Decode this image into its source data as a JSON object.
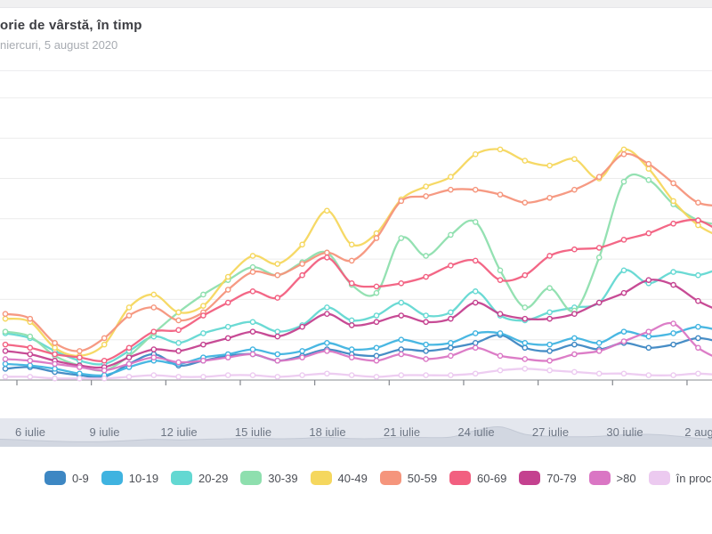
{
  "header": {
    "title": "orie de vârstă, în timp",
    "subtitle": "niercuri, 5 august 2020"
  },
  "chart_data": {
    "type": "line",
    "style": "smooth splines with small open circle markers, one point per day",
    "title": "orie de vârstă, în timp",
    "subtitle": "niercuri, 5 august 2020",
    "xlabel": "",
    "ylabel": "",
    "x": [
      "5 iul",
      "6 iul",
      "7 iul",
      "8 iul",
      "9 iul",
      "10 iul",
      "11 iul",
      "12 iul",
      "13 iul",
      "14 iul",
      "15 iul",
      "16 iul",
      "17 iul",
      "18 iul",
      "19 iul",
      "20 iul",
      "21 iul",
      "22 iul",
      "23 iul",
      "24 iul",
      "25 iul",
      "26 iul",
      "27 iul",
      "28 iul",
      "29 iul",
      "30 iul",
      "31 iul",
      "1 aug",
      "2 aug",
      "3 aug"
    ],
    "x_tick_labels": [
      "6 iulie",
      "9 iulie",
      "12 iulie",
      "15 iulie",
      "18 iulie",
      "21 iulie",
      "24 iulie",
      "27 iulie",
      "30 iulie",
      "2 aug"
    ],
    "ylim": [
      0,
      190
    ],
    "gridline_step": 25,
    "grid": "horizontal",
    "y_axis_labels_visible": false,
    "legend_position": "bottom",
    "series": [
      {
        "name": "0-9",
        "color": "#3d87c3",
        "values": [
          7,
          8,
          5,
          3,
          2,
          10,
          16,
          9,
          12,
          15,
          16,
          12,
          15,
          19,
          16,
          15,
          19,
          18,
          20,
          23,
          28,
          20,
          18,
          22,
          19,
          23,
          20,
          22,
          26,
          23
        ]
      },
      {
        "name": "10-19",
        "color": "#3fb3e0",
        "values": [
          10,
          9,
          7,
          4,
          3,
          8,
          12,
          10,
          14,
          16,
          19,
          16,
          18,
          23,
          19,
          20,
          25,
          22,
          23,
          29,
          29,
          23,
          22,
          26,
          23,
          30,
          27,
          29,
          33,
          30
        ]
      },
      {
        "name": "20-29",
        "color": "#63d8d2",
        "values": [
          29,
          26,
          18,
          12,
          10,
          18,
          27,
          23,
          29,
          33,
          36,
          30,
          34,
          45,
          37,
          40,
          48,
          40,
          42,
          55,
          40,
          37,
          42,
          45,
          48,
          68,
          60,
          67,
          65,
          70
        ]
      },
      {
        "name": "30-39",
        "color": "#8edfae",
        "values": [
          30,
          27,
          15,
          9,
          6,
          15,
          29,
          42,
          53,
          62,
          70,
          65,
          73,
          79,
          59,
          54,
          88,
          77,
          90,
          98,
          68,
          45,
          57,
          43,
          76,
          123,
          124,
          109,
          99,
          96
        ]
      },
      {
        "name": "40-49",
        "color": "#f5d75e",
        "values": [
          38,
          36,
          20,
          15,
          22,
          45,
          53,
          42,
          46,
          64,
          77,
          72,
          84,
          105,
          84,
          91,
          112,
          120,
          126,
          140,
          143,
          136,
          133,
          137,
          125,
          143,
          131,
          111,
          96,
          88
        ]
      },
      {
        "name": "50-59",
        "color": "#f5957c",
        "values": [
          41,
          38,
          23,
          18,
          26,
          40,
          45,
          37,
          42,
          56,
          67,
          65,
          72,
          79,
          74,
          88,
          111,
          114,
          118,
          118,
          115,
          110,
          113,
          118,
          126,
          140,
          134,
          122,
          110,
          108
        ]
      },
      {
        "name": "60-69",
        "color": "#f25f80",
        "values": [
          22,
          20,
          16,
          14,
          12,
          20,
          30,
          31,
          40,
          48,
          55,
          51,
          65,
          76,
          60,
          58,
          60,
          64,
          71,
          74,
          62,
          65,
          77,
          81,
          82,
          87,
          91,
          97,
          99,
          91
        ]
      },
      {
        "name": "70-79",
        "color": "#c4418f",
        "values": [
          18,
          16,
          12,
          9,
          8,
          14,
          19,
          18,
          22,
          26,
          30,
          27,
          33,
          41,
          34,
          36,
          40,
          36,
          38,
          48,
          41,
          38,
          38,
          41,
          48,
          54,
          62,
          59,
          49,
          42
        ]
      },
      {
        "name": ">80",
        "color": "#da76c4",
        "values": [
          13,
          12,
          10,
          8,
          6,
          10,
          14,
          11,
          12,
          14,
          16,
          12,
          14,
          18,
          14,
          12,
          16,
          13,
          15,
          20,
          15,
          13,
          12,
          16,
          18,
          24,
          30,
          35,
          20,
          12
        ]
      },
      {
        "name": "în procesare",
        "color": "#eccaf0",
        "values": [
          2,
          2,
          1,
          1,
          1,
          2,
          3,
          2,
          2,
          3,
          3,
          2,
          3,
          4,
          3,
          2,
          3,
          3,
          3,
          4,
          6,
          7,
          6,
          5,
          4,
          4,
          3,
          3,
          4,
          3
        ]
      }
    ]
  },
  "navigator": {
    "area_values": [
      3,
      2.6,
      2.2,
      2,
      2.1,
      2.5,
      3,
      2.8,
      3,
      3.2,
      3.5,
      3.2,
      3.4,
      3.8,
      3.3,
      3.3,
      3.9,
      3.7,
      3.9,
      6.5,
      8,
      5,
      4.2,
      4,
      4.2,
      4.8,
      5,
      4.4,
      3.4,
      3
    ],
    "bg_color": "#e4e7ee",
    "area_color": "#d2d7e1",
    "line_color": "#c3c9d5"
  },
  "colors": {
    "gridline": "#ececec",
    "axis": "#a0a3a8",
    "tick": "#84878d"
  }
}
